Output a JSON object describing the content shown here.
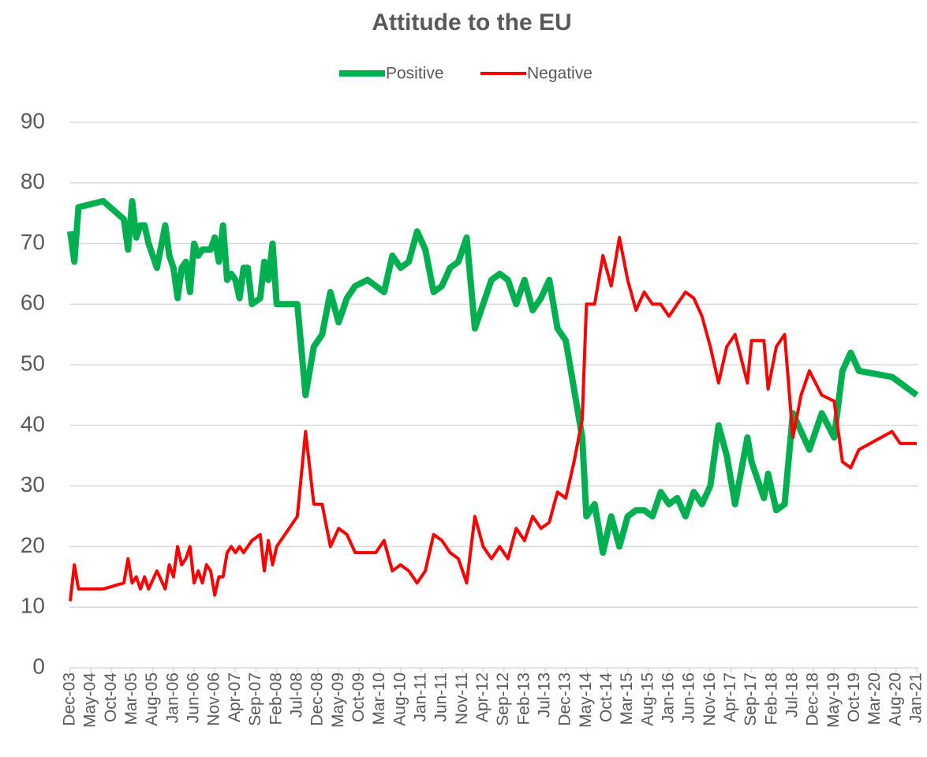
{
  "chart_data": {
    "type": "line",
    "title": "Attitude to the EU",
    "x": [
      "Dec-03",
      "Jan-04",
      "Feb-04",
      "Aug-04",
      "Jan-05",
      "Feb-05",
      "Mar-05",
      "Apr-05",
      "May-05",
      "Jun-05",
      "Jul-05",
      "Sep-05",
      "Nov-05",
      "Dec-05",
      "Jan-06",
      "Feb-06",
      "Mar-06",
      "Apr-06",
      "May-06",
      "Jun-06",
      "Jul-06",
      "Aug-06",
      "Sep-06",
      "Oct-06",
      "Nov-06",
      "Dec-06",
      "Jan-07",
      "Feb-07",
      "Mar-07",
      "Apr-07",
      "May-07",
      "Jun-07",
      "Jul-07",
      "Aug-07",
      "Oct-07",
      "Nov-07",
      "Dec-07",
      "Jan-08",
      "Feb-08",
      "Jul-08",
      "Sep-08",
      "Nov-08",
      "Jan-09",
      "Mar-09",
      "May-09",
      "Jul-09",
      "Sep-09",
      "Dec-09",
      "Feb-10",
      "Apr-10",
      "Jun-10",
      "Aug-10",
      "Oct-10",
      "Dec-10",
      "Feb-11",
      "Apr-11",
      "Jun-11",
      "Aug-11",
      "Oct-11",
      "Dec-11",
      "Feb-12",
      "Apr-12",
      "Jun-12",
      "Aug-12",
      "Oct-12",
      "Dec-12",
      "Feb-13",
      "Apr-13",
      "Jun-13",
      "Aug-13",
      "Oct-13",
      "Dec-13",
      "Feb-14",
      "Apr-14",
      "May-14",
      "Jul-14",
      "Sep-14",
      "Nov-14",
      "Jan-15",
      "Mar-15",
      "May-15",
      "Jul-15",
      "Sep-15",
      "Nov-15",
      "Jan-16",
      "Mar-16",
      "May-16",
      "Jul-16",
      "Sep-16",
      "Nov-16",
      "Jan-17",
      "Mar-17",
      "May-17",
      "Aug-17",
      "Sep-17",
      "Dec-17",
      "Jan-18",
      "Mar-18",
      "May-18",
      "Jul-18",
      "Sep-18",
      "Nov-18",
      "Feb-19",
      "May-19",
      "Jul-19",
      "Sep-19",
      "Nov-19",
      "Jul-20",
      "Sep-20",
      "Nov-20",
      "Jan-21"
    ],
    "series": [
      {
        "name": "Positive",
        "color": "#00b050",
        "values": [
          72,
          67,
          76,
          77,
          74,
          69,
          77,
          71,
          73,
          73,
          70,
          66,
          73,
          68,
          66,
          61,
          66,
          67,
          62,
          70,
          68,
          69,
          69,
          69,
          71,
          67,
          73,
          64,
          65,
          64,
          61,
          66,
          66,
          60,
          61,
          67,
          64,
          70,
          60,
          60,
          45,
          53,
          55,
          62,
          57,
          61,
          63,
          64,
          63,
          62,
          68,
          66,
          67,
          72,
          69,
          62,
          63,
          66,
          67,
          71,
          56,
          60,
          64,
          65,
          64,
          60,
          64,
          59,
          61,
          64,
          56,
          54,
          46,
          38,
          25,
          27,
          19,
          25,
          20,
          25,
          26,
          26,
          25,
          29,
          27,
          28,
          25,
          29,
          27,
          30,
          40,
          35,
          27,
          38,
          34,
          28,
          32,
          26,
          27,
          42,
          39,
          36,
          42,
          38,
          49,
          52,
          49,
          48,
          47,
          46,
          45
        ]
      },
      {
        "name": "Negative",
        "color": "#ff0000",
        "values": [
          11,
          17,
          13,
          13,
          14,
          18,
          14,
          15,
          13,
          15,
          13,
          16,
          13,
          17,
          15,
          20,
          17,
          18,
          20,
          14,
          16,
          14,
          17,
          16,
          12,
          15,
          15,
          19,
          20,
          19,
          20,
          19,
          20,
          21,
          22,
          16,
          21,
          17,
          20,
          25,
          39,
          27,
          27,
          20,
          23,
          22,
          19,
          19,
          19,
          21,
          16,
          17,
          16,
          14,
          16,
          22,
          21,
          19,
          18,
          14,
          25,
          20,
          18,
          20,
          18,
          23,
          21,
          25,
          23,
          24,
          29,
          28,
          34,
          41,
          60,
          60,
          68,
          63,
          71,
          64,
          59,
          62,
          60,
          60,
          58,
          60,
          62,
          61,
          58,
          53,
          47,
          53,
          55,
          47,
          54,
          54,
          46,
          53,
          55,
          38,
          45,
          49,
          45,
          44,
          34,
          33,
          36,
          39,
          37,
          37,
          37
        ]
      }
    ],
    "xlim": [
      "Dec-03",
      "Jan-21"
    ],
    "xticks": [
      "Dec-03",
      "May-04",
      "Oct-04",
      "Mar-05",
      "Aug-05",
      "Jan-06",
      "Jun-06",
      "Nov-06",
      "Apr-07",
      "Sep-07",
      "Feb-08",
      "Jul-08",
      "Dec-08",
      "May-09",
      "Oct-09",
      "Mar-10",
      "Aug-10",
      "Jan-11",
      "Jun-11",
      "Nov-11",
      "Apr-12",
      "Sep-12",
      "Feb-13",
      "Jul-13",
      "Dec-13",
      "May-14",
      "Oct-14",
      "Mar-15",
      "Aug-15",
      "Jan-16",
      "Jun-16",
      "Nov-16",
      "Apr-17",
      "Sep-17",
      "Feb-18",
      "Jul-18",
      "Dec-18",
      "May-19",
      "Oct-19",
      "Mar-20",
      "Aug-20",
      "Jan-21"
    ],
    "ylim": [
      0,
      90
    ],
    "yticks": [
      0,
      10,
      20,
      30,
      40,
      50,
      60,
      70,
      80,
      90
    ],
    "grid": true,
    "legend": "top"
  }
}
